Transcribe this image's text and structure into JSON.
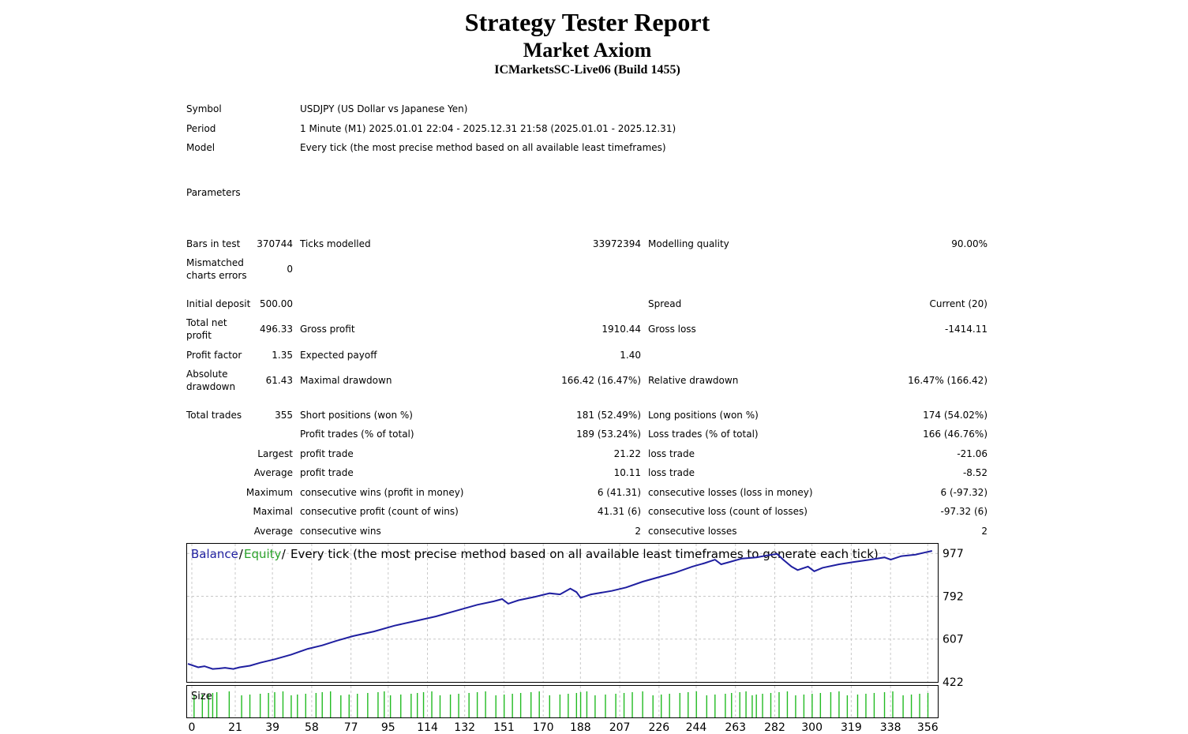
{
  "header": {
    "title": "Strategy Tester Report",
    "subtitle": "Market Axiom",
    "server": "ICMarketsSC-Live06 (Build 1455)"
  },
  "info": {
    "symbol_label": "Symbol",
    "symbol_value": "USDJPY (US Dollar vs Japanese Yen)",
    "period_label": "Period",
    "period_value": "1 Minute (M1) 2025.01.01 22:04 - 2025.12.31 21:58 (2025.01.01 - 2025.12.31)",
    "model_label": "Model",
    "model_value": "Every tick (the most precise method based on all available least timeframes)",
    "parameters_label": "Parameters"
  },
  "stats": {
    "bars_label": "Bars in test",
    "bars_value": "370744",
    "ticks_label": "Ticks modelled",
    "ticks_value": "33972394",
    "quality_label": "Modelling quality",
    "quality_value": "90.00%",
    "mismatch_label": "Mismatched charts errors",
    "mismatch_value": "0",
    "deposit_label": "Initial deposit",
    "deposit_value": "500.00",
    "spread_label": "Spread",
    "spread_value": "Current (20)",
    "net_label": "Total net profit",
    "net_value": "496.33",
    "gross_profit_label": "Gross profit",
    "gross_profit_value": "1910.44",
    "gross_loss_label": "Gross loss",
    "gross_loss_value": "-1414.11",
    "pf_label": "Profit factor",
    "pf_value": "1.35",
    "payoff_label": "Expected payoff",
    "payoff_value": "1.40",
    "abs_dd_label": "Absolute drawdown",
    "abs_dd_value": "61.43",
    "max_dd_label": "Maximal drawdown",
    "max_dd_value": "166.42 (16.47%)",
    "rel_dd_label": "Relative drawdown",
    "rel_dd_value": "16.47% (166.42)",
    "trades_label": "Total trades",
    "trades_value": "355",
    "short_label": "Short positions (won %)",
    "short_value": "181 (52.49%)",
    "long_label": "Long positions (won %)",
    "long_value": "174 (54.02%)",
    "profit_trades_label": "Profit trades (% of total)",
    "profit_trades_value": "189 (53.24%)",
    "loss_trades_label": "Loss trades (% of total)",
    "loss_trades_value": "166 (46.76%)",
    "largest_label": "Largest",
    "largest_profit_label": "profit trade",
    "largest_profit_value": "21.22",
    "largest_loss_label": "loss trade",
    "largest_loss_value": "-21.06",
    "average_label": "Average",
    "average_profit_label": "profit trade",
    "average_profit_value": "10.11",
    "average_loss_label": "loss trade",
    "average_loss_value": "-8.52",
    "maximum_label": "Maximum",
    "max_wins_label": "consecutive wins (profit in money)",
    "max_wins_value": "6 (41.31)",
    "max_losses_label": "consecutive losses (loss in money)",
    "max_losses_value": "6 (-97.32)",
    "maximal_label": "Maximal",
    "maximal_profit_label": "consecutive profit (count of wins)",
    "maximal_profit_value": "41.31 (6)",
    "maximal_loss_label": "consecutive loss (count of losses)",
    "maximal_loss_value": "-97.32 (6)",
    "average2_label": "Average",
    "avg_wins_label": "consecutive wins",
    "avg_wins_value": "2",
    "avg_losses_label": "consecutive losses",
    "avg_losses_value": "2"
  },
  "chart_data": {
    "type": "line",
    "legend": {
      "balance": "Balance",
      "sep1": " / ",
      "equity": "Equity",
      "sep2": " / ",
      "description": "Every tick (the most precise method based on all available least timeframes to generate each tick)"
    },
    "size_label": "Size",
    "y_ticks": [
      "977",
      "792",
      "607",
      "422"
    ],
    "x_ticks": [
      "0",
      "21",
      "39",
      "58",
      "77",
      "95",
      "114",
      "132",
      "151",
      "170",
      "188",
      "207",
      "226",
      "244",
      "263",
      "282",
      "300",
      "319",
      "338",
      "356"
    ],
    "ylim": [
      422,
      1022
    ],
    "xlim": [
      0,
      362
    ],
    "grid": true,
    "colors": {
      "balance": "#1f1fa0",
      "equity": "#2aa12a",
      "size": "#22bb22",
      "grid": "#c8c8c8"
    },
    "series": [
      {
        "name": "Balance",
        "x": [
          0,
          5,
          8,
          12,
          15,
          18,
          22,
          25,
          30,
          35,
          42,
          50,
          58,
          65,
          72,
          80,
          90,
          100,
          110,
          120,
          130,
          140,
          148,
          152,
          155,
          160,
          168,
          175,
          180,
          185,
          188,
          190,
          195,
          205,
          212,
          220,
          228,
          236,
          244,
          250,
          255,
          258,
          262,
          268,
          275,
          280,
          285,
          288,
          292,
          295,
          300,
          303,
          307,
          315,
          322,
          330,
          337,
          340,
          345,
          352,
          356,
          360
        ],
        "y": [
          500,
          485,
          490,
          478,
          480,
          483,
          478,
          485,
          492,
          505,
          520,
          540,
          565,
          580,
          600,
          620,
          640,
          665,
          685,
          705,
          730,
          755,
          770,
          780,
          760,
          775,
          790,
          805,
          800,
          825,
          810,
          785,
          800,
          815,
          830,
          855,
          875,
          895,
          920,
          935,
          950,
          930,
          940,
          955,
          960,
          968,
          975,
          950,
          920,
          905,
          920,
          900,
          915,
          930,
          940,
          950,
          960,
          950,
          965,
          972,
          980,
          988
        ]
      }
    ],
    "size_bars": [
      3,
      7,
      10,
      12,
      14,
      20,
      26,
      30,
      35,
      39,
      42,
      46,
      50,
      53,
      57,
      62,
      65,
      69,
      74,
      78,
      82,
      87,
      92,
      95,
      98,
      103,
      108,
      111,
      114,
      118,
      122,
      127,
      131,
      136,
      140,
      144,
      149,
      153,
      157,
      161,
      166,
      170,
      175,
      180,
      184,
      188,
      190,
      193,
      197,
      202,
      207,
      211,
      215,
      220,
      225,
      229,
      233,
      238,
      242,
      246,
      251,
      255,
      260,
      263,
      267,
      270,
      273,
      275,
      278,
      282,
      286,
      290,
      294,
      298,
      302,
      306,
      311,
      315,
      319,
      324,
      328,
      332,
      337,
      341,
      346,
      350,
      354,
      358
    ]
  }
}
